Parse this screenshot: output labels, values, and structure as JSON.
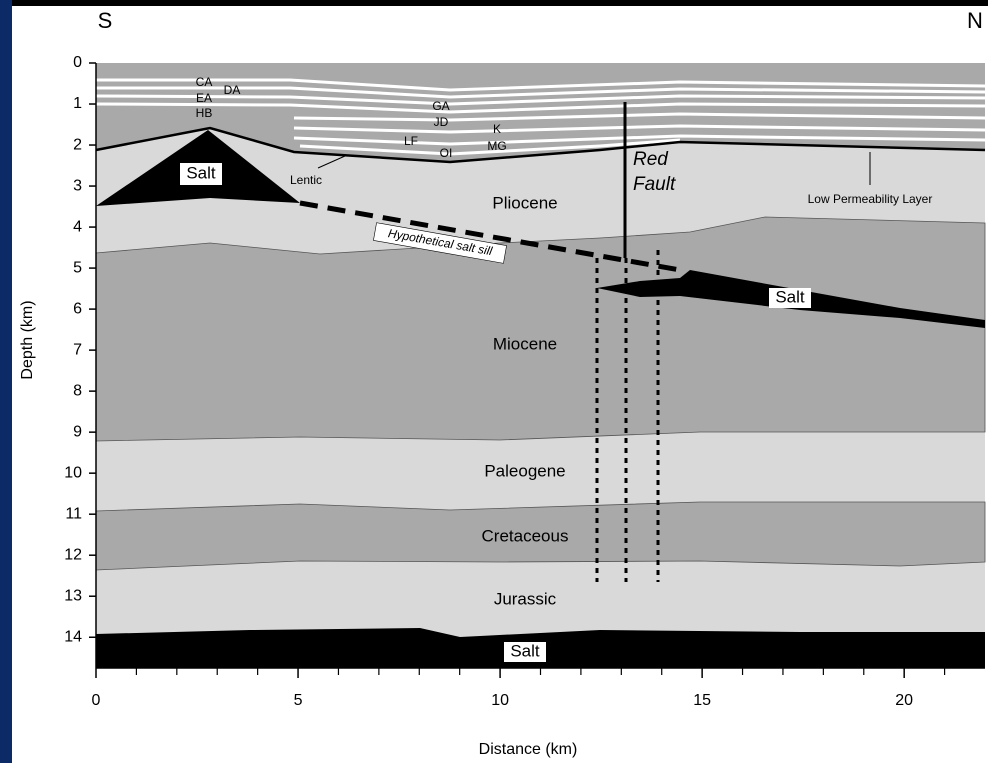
{
  "chart_data": {
    "type": "cross-section",
    "left_label": "S",
    "right_label": "N",
    "xlabel": "Distance (km)",
    "ylabel": "Depth (km)",
    "xlim": [
      0,
      22
    ],
    "ylim": [
      0,
      14.75
    ],
    "y_inverted": true,
    "xticks": [
      0,
      5,
      10,
      15,
      20
    ],
    "xminorticks": [
      1,
      2,
      3,
      4,
      6,
      7,
      8,
      9,
      11,
      12,
      13,
      14,
      16,
      17,
      18,
      19,
      21
    ],
    "yticks": [
      0,
      1,
      2,
      3,
      4,
      5,
      6,
      7,
      8,
      9,
      10,
      11,
      12,
      13,
      14
    ],
    "annotations": [
      "CA",
      "DA",
      "EA",
      "HB",
      "GA",
      "JD",
      "K",
      "LF",
      "OI",
      "MG",
      "Salt",
      "Lentic",
      "Pliocene",
      "Red",
      "Fault",
      "Low Permeability Layer",
      "Hypothetical salt sill",
      "Miocene",
      "Salt",
      "Paleogene",
      "Cretaceous",
      "Jurassic",
      "Salt"
    ]
  }
}
